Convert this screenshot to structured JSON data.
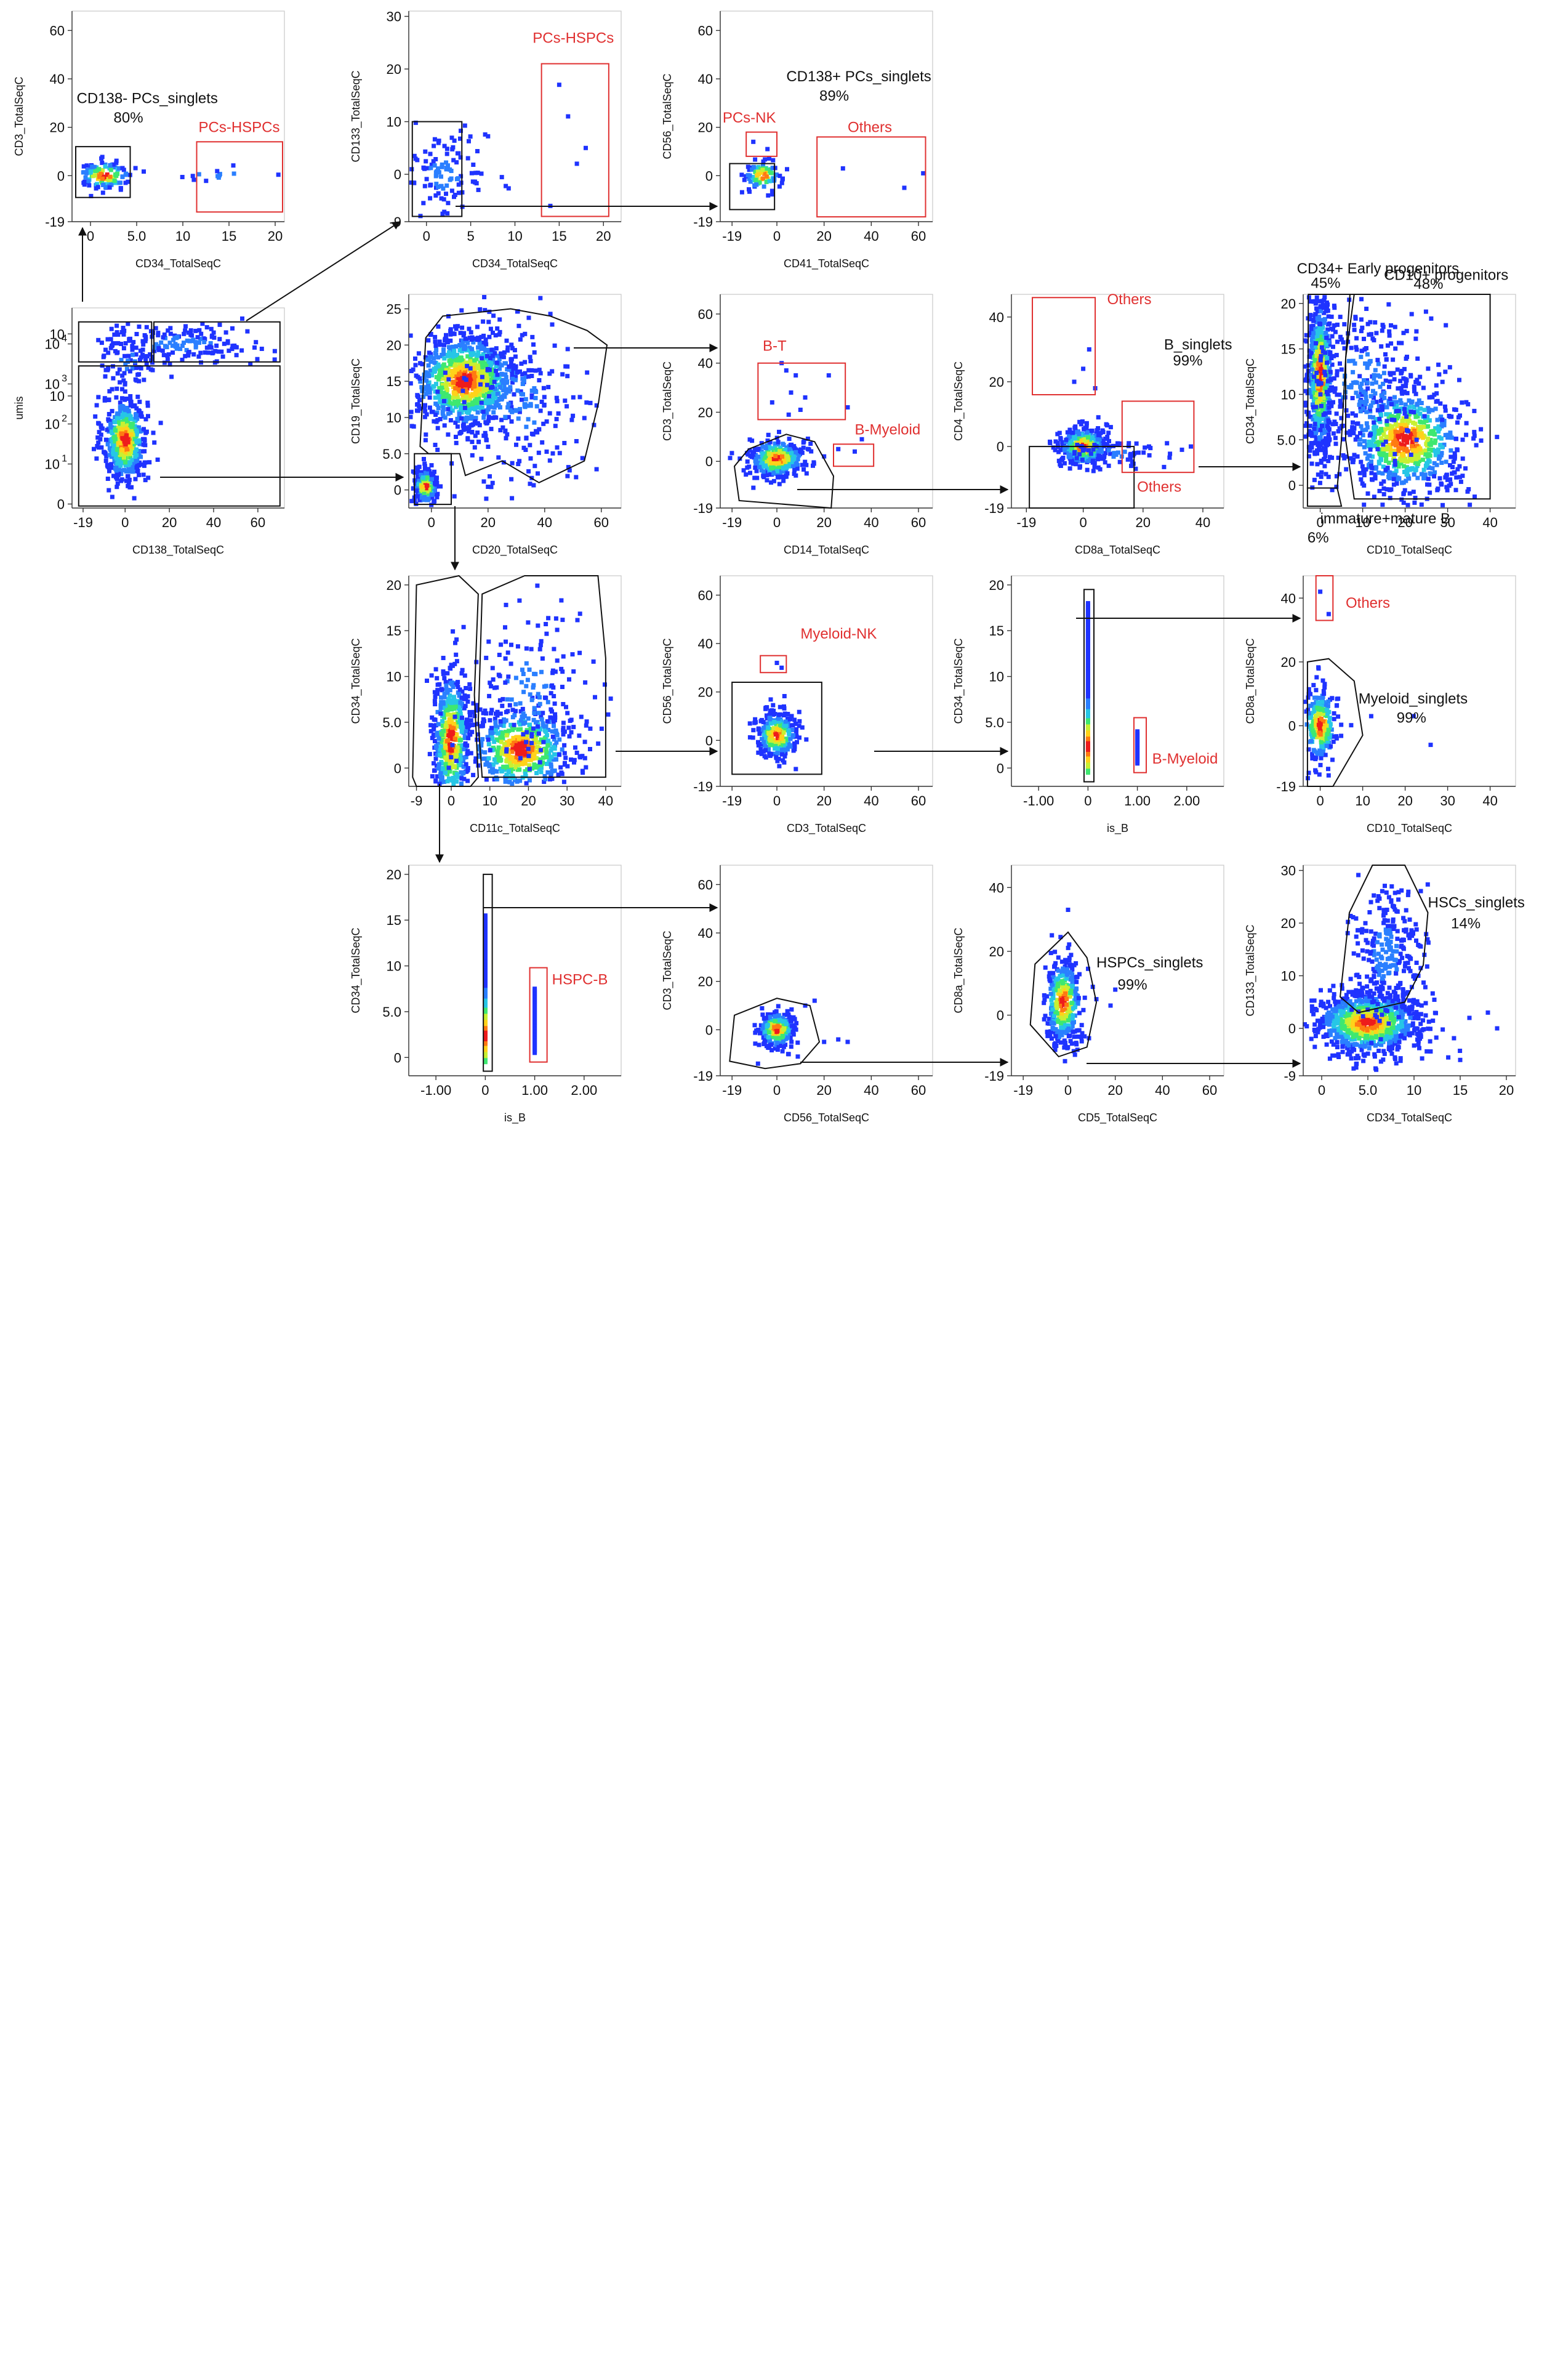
{
  "figure": {
    "colors": {
      "gate_black": "#111111",
      "gate_red": "#e03030",
      "text_black": "#111111",
      "text_red": "#e03030"
    },
    "colormap": [
      "#1f33ff",
      "#2a7fff",
      "#26c6e6",
      "#3ee870",
      "#c8f032",
      "#ffd21a",
      "#ff7a12",
      "#ee1c1c"
    ]
  },
  "chart_data": [
    {
      "id": "p1",
      "type": "scatter",
      "xlabel": "CD138_TotalSeqC",
      "ylabel": "umis",
      "xticks": [
        "-19",
        "0",
        "20",
        "40",
        "60"
      ],
      "yticks": [
        "0",
        "10",
        "10",
        "10",
        "10",
        "10",
        "10"
      ],
      "yticks_exp": [
        "",
        "1",
        "2",
        "",
        "3",
        "4",
        ""
      ],
      "clusters": [
        {
          "x": 0,
          "y": 1.6,
          "sx": 5,
          "sy": 0.55,
          "n": 520,
          "dense": true
        },
        {
          "x": 25,
          "y": 4.0,
          "sx": 20,
          "sy": 0.25,
          "n": 170
        },
        {
          "x": 2,
          "y": 3.6,
          "sx": 6,
          "sy": 0.4,
          "n": 60
        }
      ],
      "gates": [
        {
          "kind": "rect",
          "color": "black",
          "label": ""
        },
        {
          "kind": "rect",
          "color": "black",
          "label": ""
        },
        {
          "kind": "rect",
          "color": "black",
          "label": ""
        }
      ],
      "annotations": []
    },
    {
      "id": "p2",
      "type": "scatter",
      "xlabel": "CD34_TotalSeqC",
      "ylabel": "CD3_TotalSeqC",
      "xticks": [
        "0",
        "5.0",
        "10",
        "15",
        "20"
      ],
      "yticks": [
        "-19",
        "0",
        "20",
        "40",
        "60"
      ],
      "clusters": [
        {
          "x": 1.5,
          "y": 0,
          "sx": 1.5,
          "sy": 3,
          "n": 120,
          "dense": true
        },
        {
          "x": 14,
          "y": 0,
          "sx": 4,
          "sy": 1.5,
          "n": 14
        }
      ],
      "gates": [
        {
          "kind": "rect",
          "color": "black",
          "label": "CD138- PCs_singlets",
          "pct": "80%"
        },
        {
          "kind": "rect",
          "color": "red",
          "label": "PCs-HSPCs"
        }
      ],
      "annotations": []
    },
    {
      "id": "p3",
      "type": "scatter",
      "xlabel": "CD34_TotalSeqC",
      "ylabel": "CD133_TotalSeqC",
      "xticks": [
        "0",
        "5",
        "10",
        "15",
        "20"
      ],
      "yticks": [
        "-9",
        "0",
        "10",
        "20",
        "30"
      ],
      "clusters": [
        {
          "x": 2,
          "y": 0,
          "sx": 2.5,
          "sy": 4,
          "n": 120
        }
      ],
      "extra_points": [
        [
          15,
          17
        ],
        [
          16,
          11
        ],
        [
          17,
          2
        ],
        [
          14,
          -6
        ],
        [
          18,
          5
        ],
        [
          1,
          31
        ]
      ],
      "gates": [
        {
          "kind": "rect",
          "color": "black",
          "label": ""
        },
        {
          "kind": "rect",
          "color": "red",
          "label": "PCs-HSPCs"
        }
      ],
      "annotations": []
    },
    {
      "id": "p4",
      "type": "scatter",
      "xlabel": "CD41_TotalSeqC",
      "ylabel": "CD56_TotalSeqC",
      "xticks": [
        "-19",
        "0",
        "20",
        "40",
        "60"
      ],
      "yticks": [
        "-19",
        "0",
        "20",
        "40",
        "60"
      ],
      "clusters": [
        {
          "x": -6,
          "y": 0,
          "sx": 4,
          "sy": 3,
          "n": 90,
          "dense": true
        }
      ],
      "extra_points": [
        [
          -10,
          14
        ],
        [
          -4,
          11
        ],
        [
          28,
          3
        ],
        [
          54,
          -5
        ],
        [
          62,
          1
        ]
      ],
      "gates": [
        {
          "kind": "rect",
          "color": "black",
          "label": "CD138+ PCs_singlets",
          "pct": "89%"
        },
        {
          "kind": "rect",
          "color": "red",
          "label": "PCs-NK"
        },
        {
          "kind": "rect",
          "color": "red",
          "label": "Others"
        }
      ],
      "annotations": []
    },
    {
      "id": "p5",
      "type": "scatter",
      "xlabel": "CD20_TotalSeqC",
      "ylabel": "CD19_TotalSeqC",
      "xticks": [
        "0",
        "20",
        "40",
        "60"
      ],
      "yticks": [
        "0",
        "5.0",
        "10",
        "15",
        "20",
        "25"
      ],
      "clusters": [
        {
          "x": -2,
          "y": 0.5,
          "sx": 2,
          "sy": 1.2,
          "n": 260,
          "dense": true
        },
        {
          "x": 12,
          "y": 15,
          "sx": 10,
          "sy": 3.5,
          "n": 900,
          "dense": true
        },
        {
          "x": 30,
          "y": 12,
          "sx": 12,
          "sy": 6,
          "n": 220
        }
      ],
      "gates": [
        {
          "kind": "poly",
          "color": "black",
          "label": ""
        },
        {
          "kind": "rect",
          "color": "black",
          "label": ""
        }
      ],
      "annotations": []
    },
    {
      "id": "p6",
      "type": "scatter",
      "xlabel": "CD14_TotalSeqC",
      "ylabel": "CD3_TotalSeqC",
      "xticks": [
        "-19",
        "0",
        "20",
        "40",
        "60"
      ],
      "yticks": [
        "-19",
        "0",
        "20",
        "40",
        "60"
      ],
      "clusters": [
        {
          "x": 0,
          "y": 1,
          "sx": 6,
          "sy": 4,
          "n": 320,
          "dense": true
        }
      ],
      "extra_points": [
        [
          2,
          40
        ],
        [
          4,
          37
        ],
        [
          8,
          35
        ],
        [
          22,
          35
        ],
        [
          6,
          28
        ],
        [
          12,
          26
        ],
        [
          30,
          22
        ],
        [
          26,
          5
        ],
        [
          36,
          9
        ],
        [
          20,
          2
        ],
        [
          33,
          4
        ],
        [
          5,
          19
        ],
        [
          10,
          21
        ],
        [
          -2,
          24
        ]
      ],
      "gates": [
        {
          "kind": "poly",
          "color": "black",
          "label": ""
        },
        {
          "kind": "rect",
          "color": "red",
          "label": "B-T"
        },
        {
          "kind": "rect",
          "color": "red",
          "label": "B-Myeloid"
        }
      ],
      "annotations": []
    },
    {
      "id": "p7",
      "type": "scatter",
      "xlabel": "CD8a_TotalSeqC",
      "ylabel": "CD4_TotalSeqC",
      "xticks": [
        "-19",
        "0",
        "20",
        "40"
      ],
      "yticks": [
        "-19",
        "0",
        "20",
        "40"
      ],
      "clusters": [
        {
          "x": 0,
          "y": 0,
          "sx": 4,
          "sy": 3,
          "n": 380,
          "dense": true
        },
        {
          "x": 10,
          "y": -2,
          "sx": 8,
          "sy": 2,
          "n": 60
        }
      ],
      "extra_points": [
        [
          2,
          30
        ],
        [
          0,
          24
        ],
        [
          -3,
          20
        ],
        [
          4,
          18
        ],
        [
          22,
          0
        ],
        [
          28,
          1
        ],
        [
          33,
          -1
        ],
        [
          36,
          0
        ]
      ],
      "gates": [
        {
          "kind": "rect",
          "color": "black",
          "label": "B_singlets",
          "pct": "99%"
        },
        {
          "kind": "rect",
          "color": "red",
          "label": "Others"
        },
        {
          "kind": "rect",
          "color": "red",
          "label": "Others"
        }
      ],
      "annotations": []
    },
    {
      "id": "p8",
      "type": "scatter",
      "xlabel": "CD10_TotalSeqC",
      "ylabel": "CD34_TotalSeqC",
      "xticks": [
        "0",
        "10",
        "20",
        "30",
        "40"
      ],
      "yticks": [
        "0",
        "5.0",
        "10",
        "15",
        "20"
      ],
      "clusters": [
        {
          "x": 0,
          "y": 12,
          "sx": 1.5,
          "sy": 4.5,
          "n": 600,
          "dense": true
        },
        {
          "x": 20,
          "y": 5,
          "sx": 7,
          "sy": 3,
          "n": 700,
          "dense": true
        },
        {
          "x": 10,
          "y": 11,
          "sx": 8,
          "sy": 5,
          "n": 300
        }
      ],
      "gates": [
        {
          "kind": "poly",
          "color": "black",
          "label": "CD34+ Early progenitors",
          "pct": "45%"
        },
        {
          "kind": "poly",
          "color": "black",
          "label": "CD10+ progenitors",
          "pct": "48%"
        },
        {
          "kind": "poly",
          "color": "black",
          "label": "immature+mature B",
          "pct": "6%"
        }
      ],
      "annotations": []
    },
    {
      "id": "p9",
      "type": "scatter",
      "xlabel": "CD11c_TotalSeqC",
      "ylabel": "CD34_TotalSeqC",
      "xticks": [
        "-9",
        "0",
        "10",
        "20",
        "30",
        "40"
      ],
      "yticks": [
        "0",
        "5.0",
        "10",
        "15",
        "20"
      ],
      "clusters": [
        {
          "x": 0,
          "y": 3,
          "sx": 2.5,
          "sy": 4,
          "n": 520,
          "dense": true
        },
        {
          "x": 18,
          "y": 2,
          "sx": 7,
          "sy": 2.5,
          "n": 500,
          "dense": true
        },
        {
          "x": 20,
          "y": 8,
          "sx": 9,
          "sy": 5,
          "n": 160
        }
      ],
      "gates": [
        {
          "kind": "poly",
          "color": "black",
          "label": ""
        },
        {
          "kind": "poly",
          "color": "black",
          "label": ""
        }
      ],
      "annotations": []
    },
    {
      "id": "p10",
      "type": "scatter",
      "xlabel": "CD3_TotalSeqC",
      "ylabel": "CD56_TotalSeqC",
      "xticks": [
        "-19",
        "0",
        "20",
        "40",
        "60"
      ],
      "yticks": [
        "-19",
        "0",
        "20",
        "40",
        "60"
      ],
      "clusters": [
        {
          "x": 0,
          "y": 2,
          "sx": 4.5,
          "sy": 5,
          "n": 300,
          "dense": true
        }
      ],
      "extra_points": [
        [
          0,
          32
        ],
        [
          2,
          30
        ]
      ],
      "gates": [
        {
          "kind": "rect",
          "color": "black",
          "label": ""
        },
        {
          "kind": "rect",
          "color": "red",
          "label": "Myeloid-NK"
        }
      ],
      "annotations": []
    },
    {
      "id": "p11",
      "type": "scatter",
      "xlabel": "is_B",
      "ylabel": "CD34_TotalSeqC",
      "xticks": [
        "-1.00",
        "0",
        "1.00",
        "2.00"
      ],
      "yticks": [
        "0",
        "5.0",
        "10",
        "15",
        "20"
      ],
      "strips": [
        {
          "x": 0,
          "ymin": -0.5,
          "ymax": 18,
          "dense": true
        },
        {
          "x": 1.0,
          "ymin": 0.5,
          "ymax": 4.0,
          "dense": false
        }
      ],
      "gates": [
        {
          "kind": "rect",
          "color": "black",
          "label": ""
        },
        {
          "kind": "rect",
          "color": "red",
          "label": "B-Myeloid"
        }
      ],
      "annotations": []
    },
    {
      "id": "p12",
      "type": "scatter",
      "xlabel": "CD10_TotalSeqC",
      "ylabel": "CD8a_TotalSeqC",
      "xticks": [
        "0",
        "10",
        "20",
        "30",
        "40"
      ],
      "yticks": [
        "-19",
        "0",
        "20",
        "40"
      ],
      "clusters": [
        {
          "x": 0,
          "y": 0,
          "sx": 2,
          "sy": 6,
          "n": 230,
          "dense": true
        }
      ],
      "extra_points": [
        [
          0,
          42
        ],
        [
          2,
          35
        ],
        [
          12,
          3
        ],
        [
          22,
          3
        ],
        [
          26,
          -6
        ]
      ],
      "gates": [
        {
          "kind": "poly",
          "color": "black",
          "label": "Myeloid_singlets",
          "pct": "99%"
        },
        {
          "kind": "rect",
          "color": "red",
          "label": "Others"
        }
      ],
      "annotations": []
    },
    {
      "id": "p13",
      "type": "scatter",
      "xlabel": "is_B",
      "ylabel": "CD34_TotalSeqC",
      "xticks": [
        "-1.00",
        "0",
        "1.00",
        "2.00"
      ],
      "yticks": [
        "0",
        "5.0",
        "10",
        "15",
        "20"
      ],
      "strips": [
        {
          "x": 0,
          "ymin": -0.5,
          "ymax": 15.5,
          "dense": true
        },
        {
          "x": 1.0,
          "ymin": 0.5,
          "ymax": 7.5,
          "dense": false
        }
      ],
      "gates": [
        {
          "kind": "rect",
          "color": "black",
          "label": ""
        },
        {
          "kind": "rect",
          "color": "red",
          "label": "HSPC-B"
        }
      ],
      "annotations": []
    },
    {
      "id": "p14",
      "type": "scatter",
      "xlabel": "CD56_TotalSeqC",
      "ylabel": "CD3_TotalSeqC",
      "xticks": [
        "-19",
        "0",
        "20",
        "40",
        "60"
      ],
      "yticks": [
        "-19",
        "0",
        "20",
        "40",
        "60"
      ],
      "clusters": [
        {
          "x": 0,
          "y": 0,
          "sx": 4,
          "sy": 4,
          "n": 220,
          "dense": true
        }
      ],
      "extra_points": [
        [
          20,
          -5
        ],
        [
          26,
          -4
        ],
        [
          30,
          -5
        ],
        [
          -8,
          -14
        ],
        [
          12,
          10
        ],
        [
          16,
          12
        ]
      ],
      "gates": [
        {
          "kind": "poly",
          "color": "black",
          "label": ""
        }
      ],
      "annotations": []
    },
    {
      "id": "p15",
      "type": "scatter",
      "xlabel": "CD5_TotalSeqC",
      "ylabel": "CD8a_TotalSeqC",
      "xticks": [
        "-19",
        "0",
        "20",
        "40",
        "60"
      ],
      "yticks": [
        "-19",
        "0",
        "20",
        "40"
      ],
      "clusters": [
        {
          "x": -2,
          "y": 4,
          "sx": 4,
          "sy": 7,
          "n": 320,
          "dense": true
        }
      ],
      "extra_points": [
        [
          0,
          33
        ],
        [
          12,
          5
        ],
        [
          20,
          8
        ],
        [
          18,
          3
        ]
      ],
      "gates": [
        {
          "kind": "poly",
          "color": "black",
          "label": "HSPCs_singlets",
          "pct": "99%"
        }
      ],
      "annotations": []
    },
    {
      "id": "p16",
      "type": "scatter",
      "xlabel": "CD34_TotalSeqC",
      "ylabel": "CD133_TotalSeqC",
      "xticks": [
        "0",
        "5.0",
        "10",
        "15",
        "20"
      ],
      "yticks": [
        "-9",
        "0",
        "10",
        "20",
        "30"
      ],
      "clusters": [
        {
          "x": 5,
          "y": 1,
          "sx": 3,
          "sy": 3,
          "n": 900,
          "dense": true
        },
        {
          "x": 7,
          "y": 14,
          "sx": 2,
          "sy": 7,
          "n": 280
        }
      ],
      "extra_points": [
        [
          16,
          2
        ],
        [
          18,
          3
        ],
        [
          15,
          -6
        ],
        [
          19,
          0
        ]
      ],
      "gates": [
        {
          "kind": "poly",
          "color": "black",
          "label": "HSCs_singlets",
          "pct": "14%"
        }
      ],
      "annotations": []
    }
  ]
}
